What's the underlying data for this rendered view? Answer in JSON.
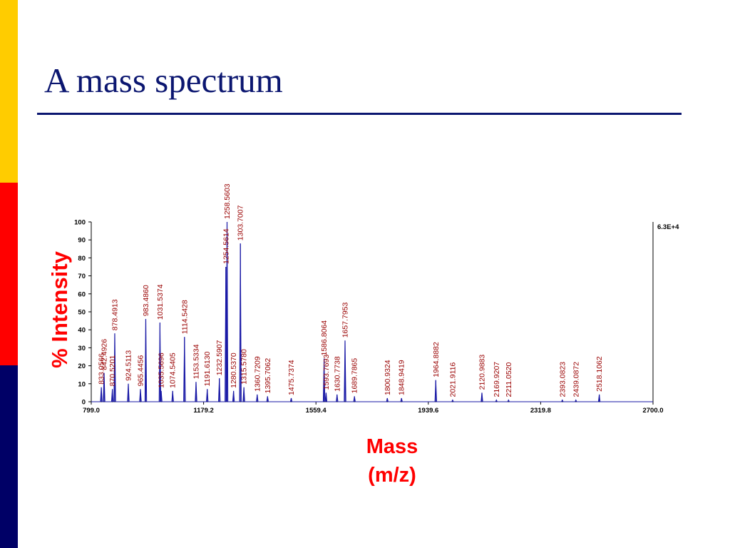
{
  "slide": {
    "title": "A mass spectrum",
    "accent_colors": [
      "#ffcc00",
      "#ff0000",
      "#000066"
    ],
    "title_color": "#0b1670"
  },
  "chart_data": {
    "type": "line",
    "title": "",
    "ylabel": "% Intensity",
    "xlabel_line1": "Mass",
    "xlabel_line2": "(m/z)",
    "xlim": [
      799.0,
      2700.0
    ],
    "ylim": [
      0,
      100
    ],
    "x_ticks": [
      "799.0",
      "1179.2",
      "1559.4",
      "1939.6",
      "2319.8",
      "2700.0"
    ],
    "x_tick_values": [
      799.0,
      1179.2,
      1559.4,
      1939.6,
      2319.8,
      2700.0
    ],
    "y_ticks": [
      0,
      10,
      20,
      30,
      40,
      50,
      60,
      70,
      80,
      90,
      100
    ],
    "max_intensity_label": "6.3E+4",
    "grid": false,
    "line_color": "#1a1aa6",
    "peaks": [
      {
        "mz": 833.0566,
        "label": "833.0566",
        "intensity": 8
      },
      {
        "mz": 842.4926,
        "label": "842.4926",
        "intensity": 16
      },
      {
        "mz": 870.5201,
        "label": "870.5201",
        "intensity": 7
      },
      {
        "mz": 878.4913,
        "label": "878.4913",
        "intensity": 38
      },
      {
        "mz": 924.5113,
        "label": "924.5113",
        "intensity": 10
      },
      {
        "mz": 965.4456,
        "label": "965.4456",
        "intensity": 7
      },
      {
        "mz": 983.486,
        "label": "983.4860",
        "intensity": 46
      },
      {
        "mz": 1031.5374,
        "label": "1031.5374",
        "intensity": 44
      },
      {
        "mz": 1035.5696,
        "label": "1035.5696",
        "intensity": 6
      },
      {
        "mz": 1074.5405,
        "label": "1074.5405",
        "intensity": 6
      },
      {
        "mz": 1114.5428,
        "label": "1114.5428",
        "intensity": 36
      },
      {
        "mz": 1153.5334,
        "label": "1153.5334",
        "intensity": 11
      },
      {
        "mz": 1191.613,
        "label": "1191.6130",
        "intensity": 7
      },
      {
        "mz": 1232.5907,
        "label": "1232.5907",
        "intensity": 13
      },
      {
        "mz": 1254.5614,
        "label": "1254.5614",
        "intensity": 75
      },
      {
        "mz": 1258.5603,
        "label": "1258.5603",
        "intensity": 100
      },
      {
        "mz": 1280.537,
        "label": "1280.5370",
        "intensity": 6
      },
      {
        "mz": 1303.7007,
        "label": "1303.7007",
        "intensity": 88
      },
      {
        "mz": 1315.578,
        "label": "1315.5780",
        "intensity": 8
      },
      {
        "mz": 1360.7209,
        "label": "1360.7209",
        "intensity": 4
      },
      {
        "mz": 1395.7062,
        "label": "1395.7062",
        "intensity": 3
      },
      {
        "mz": 1475.7374,
        "label": "1475.7374",
        "intensity": 2
      },
      {
        "mz": 1586.8064,
        "label": "1586.8064",
        "intensity": 24
      },
      {
        "mz": 1593.7693,
        "label": "1593.7693",
        "intensity": 5
      },
      {
        "mz": 1630.7738,
        "label": "1630.7738",
        "intensity": 4
      },
      {
        "mz": 1657.7953,
        "label": "1657.7953",
        "intensity": 34
      },
      {
        "mz": 1689.7865,
        "label": "1689.7865",
        "intensity": 3
      },
      {
        "mz": 1800.9324,
        "label": "1800.9324",
        "intensity": 2
      },
      {
        "mz": 1848.9419,
        "label": "1848.9419",
        "intensity": 2
      },
      {
        "mz": 1964.8882,
        "label": "1964.8882",
        "intensity": 12
      },
      {
        "mz": 2021.9116,
        "label": "2021.9116",
        "intensity": 1
      },
      {
        "mz": 2120.9883,
        "label": "2120.9883",
        "intensity": 5
      },
      {
        "mz": 2169.9207,
        "label": "2169.9207",
        "intensity": 1
      },
      {
        "mz": 2211.052,
        "label": "2211.0520",
        "intensity": 1
      },
      {
        "mz": 2393.0823,
        "label": "2393.0823",
        "intensity": 1
      },
      {
        "mz": 2439.0872,
        "label": "2439.0872",
        "intensity": 1
      },
      {
        "mz": 2518.1062,
        "label": "2518.1062",
        "intensity": 4
      }
    ]
  }
}
